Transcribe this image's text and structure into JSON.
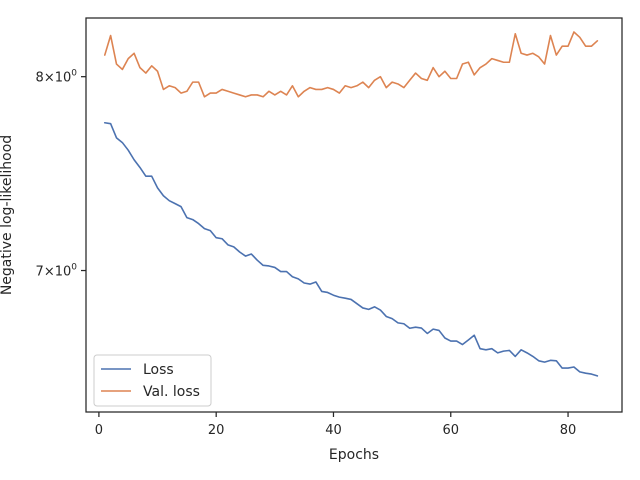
{
  "chart_data": {
    "type": "line",
    "title": "",
    "xlabel": "Epochs",
    "ylabel": "Negative log-likelihood",
    "yscale": "log",
    "xlim": [
      -2.2,
      89.2
    ],
    "ylim": [
      6.35,
      8.33
    ],
    "x_ticks": [
      {
        "value": 0,
        "label": "0"
      },
      {
        "value": 20,
        "label": "20"
      },
      {
        "value": 40,
        "label": "40"
      },
      {
        "value": 60,
        "label": "60"
      },
      {
        "value": 80,
        "label": "80"
      }
    ],
    "y_ticks": [
      {
        "value": 7,
        "base": "7",
        "exp": "0"
      },
      {
        "value": 8,
        "base": "8",
        "exp": "0"
      }
    ],
    "legend_position": "lower-left",
    "series": [
      {
        "name": "Loss",
        "color": "#4c72b0",
        "x": [
          1,
          2,
          3,
          4,
          5,
          6,
          7,
          8,
          9,
          10,
          11,
          12,
          13,
          14,
          15,
          16,
          17,
          18,
          19,
          20,
          21,
          22,
          23,
          24,
          25,
          26,
          27,
          28,
          29,
          30,
          31,
          32,
          33,
          34,
          35,
          36,
          37,
          38,
          39,
          40,
          41,
          42,
          43,
          44,
          45,
          46,
          47,
          48,
          49,
          50,
          51,
          52,
          53,
          54,
          55,
          56,
          57,
          58,
          59,
          60,
          61,
          62,
          63,
          64,
          65,
          66,
          67,
          68,
          69,
          70,
          71,
          72,
          73,
          74,
          75,
          76,
          77,
          78,
          79,
          80,
          81,
          82,
          83,
          84,
          85
        ],
        "values": [
          7.75,
          7.745,
          7.67,
          7.645,
          7.605,
          7.555,
          7.515,
          7.47,
          7.47,
          7.41,
          7.37,
          7.345,
          7.33,
          7.315,
          7.26,
          7.25,
          7.23,
          7.205,
          7.195,
          7.16,
          7.155,
          7.125,
          7.115,
          7.09,
          7.07,
          7.08,
          7.05,
          7.025,
          7.022,
          7.015,
          6.995,
          6.995,
          6.97,
          6.96,
          6.94,
          6.935,
          6.945,
          6.9,
          6.895,
          6.882,
          6.873,
          6.868,
          6.862,
          6.842,
          6.822,
          6.815,
          6.827,
          6.812,
          6.782,
          6.772,
          6.752,
          6.748,
          6.727,
          6.732,
          6.728,
          6.703,
          6.723,
          6.717,
          6.682,
          6.668,
          6.668,
          6.652,
          6.673,
          6.695,
          6.633,
          6.628,
          6.633,
          6.614,
          6.622,
          6.625,
          6.598,
          6.628,
          6.614,
          6.598,
          6.578,
          6.572,
          6.58,
          6.578,
          6.545,
          6.545,
          6.55,
          6.528,
          6.522,
          6.518,
          6.51
        ]
      },
      {
        "name": "Val. loss",
        "color": "#dd8452",
        "x": [
          1,
          2,
          3,
          4,
          5,
          6,
          7,
          8,
          9,
          10,
          11,
          12,
          13,
          14,
          15,
          16,
          17,
          18,
          19,
          20,
          21,
          22,
          23,
          24,
          25,
          26,
          27,
          28,
          29,
          30,
          31,
          32,
          33,
          34,
          35,
          36,
          37,
          38,
          39,
          40,
          41,
          42,
          43,
          44,
          45,
          46,
          47,
          48,
          49,
          50,
          51,
          52,
          53,
          54,
          55,
          56,
          57,
          58,
          59,
          60,
          61,
          62,
          63,
          64,
          65,
          66,
          67,
          68,
          69,
          70,
          71,
          72,
          73,
          74,
          75,
          76,
          77,
          78,
          79,
          80,
          81,
          82,
          83,
          84,
          85
        ],
        "values": [
          8.12,
          8.23,
          8.07,
          8.04,
          8.1,
          8.13,
          8.05,
          8.02,
          8.06,
          8.03,
          7.93,
          7.95,
          7.94,
          7.91,
          7.92,
          7.97,
          7.97,
          7.89,
          7.91,
          7.91,
          7.93,
          7.92,
          7.91,
          7.9,
          7.89,
          7.9,
          7.9,
          7.89,
          7.92,
          7.9,
          7.92,
          7.9,
          7.95,
          7.89,
          7.92,
          7.94,
          7.93,
          7.93,
          7.94,
          7.93,
          7.91,
          7.95,
          7.94,
          7.95,
          7.97,
          7.94,
          7.98,
          8.0,
          7.94,
          7.97,
          7.96,
          7.94,
          7.98,
          8.02,
          7.99,
          7.98,
          8.05,
          8.0,
          8.03,
          7.99,
          7.99,
          8.07,
          8.08,
          8.01,
          8.05,
          8.07,
          8.1,
          8.09,
          8.08,
          8.08,
          8.24,
          8.13,
          8.12,
          8.13,
          8.11,
          8.07,
          8.23,
          8.12,
          8.17,
          8.17,
          8.25,
          8.22,
          8.17,
          8.17,
          8.2
        ]
      }
    ]
  }
}
